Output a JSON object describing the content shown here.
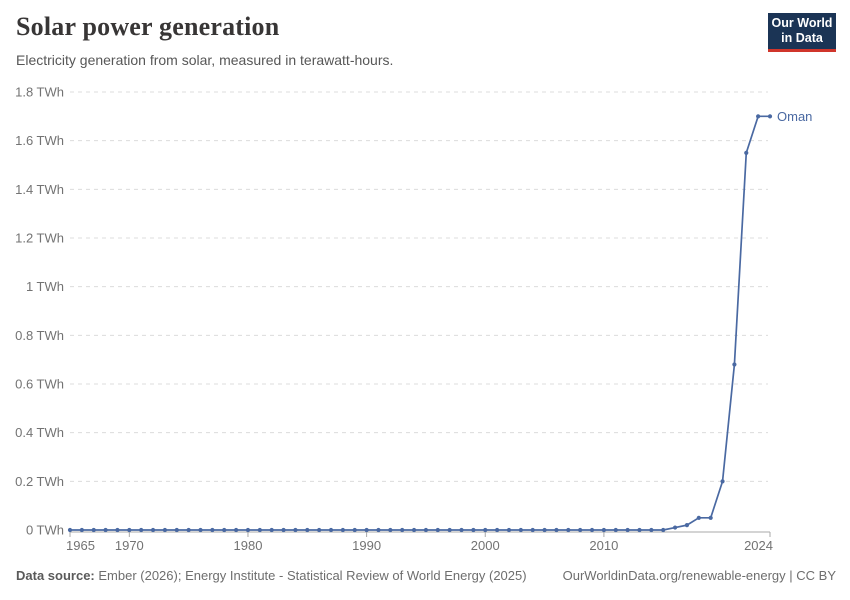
{
  "header": {
    "title": "Solar power generation",
    "subtitle": "Electricity generation from solar, measured in terawatt-hours."
  },
  "logo": {
    "line1": "Our World",
    "line2": "in Data",
    "bg_color": "#1b3455",
    "accent_color": "#d0352b"
  },
  "chart_data": {
    "type": "line",
    "title": "Solar power generation",
    "subtitle": "Electricity generation from solar, measured in terawatt-hours.",
    "unit": "TWh",
    "xlim": [
      1965,
      2024
    ],
    "ylim": [
      0,
      1.8
    ],
    "grid": "horizontal-dashed",
    "legend_position": "line-end-label",
    "x": [
      1965,
      1966,
      1967,
      1968,
      1969,
      1970,
      1971,
      1972,
      1973,
      1974,
      1975,
      1976,
      1977,
      1978,
      1979,
      1980,
      1981,
      1982,
      1983,
      1984,
      1985,
      1986,
      1987,
      1988,
      1989,
      1990,
      1991,
      1992,
      1993,
      1994,
      1995,
      1996,
      1997,
      1998,
      1999,
      2000,
      2001,
      2002,
      2003,
      2004,
      2005,
      2006,
      2007,
      2008,
      2009,
      2010,
      2011,
      2012,
      2013,
      2014,
      2015,
      2016,
      2017,
      2018,
      2019,
      2020,
      2021,
      2022,
      2023,
      2024
    ],
    "series": [
      {
        "name": "Oman",
        "color": "#4a69a2",
        "values": [
          0,
          0,
          0,
          0,
          0,
          0,
          0,
          0,
          0,
          0,
          0,
          0,
          0,
          0,
          0,
          0,
          0,
          0,
          0,
          0,
          0,
          0,
          0,
          0,
          0,
          0,
          0,
          0,
          0,
          0,
          0,
          0,
          0,
          0,
          0,
          0,
          0,
          0,
          0,
          0,
          0,
          0,
          0,
          0,
          0,
          0,
          0,
          0,
          0,
          0,
          0,
          0.01,
          0.02,
          0.05,
          0.05,
          0.2,
          0.68,
          1.55,
          1.7,
          1.7
        ]
      }
    ],
    "y_ticks": [
      {
        "v": 0,
        "label": "0 TWh"
      },
      {
        "v": 0.2,
        "label": "0.2 TWh"
      },
      {
        "v": 0.4,
        "label": "0.4 TWh"
      },
      {
        "v": 0.6,
        "label": "0.6 TWh"
      },
      {
        "v": 0.8,
        "label": "0.8 TWh"
      },
      {
        "v": 1,
        "label": "1 TWh"
      },
      {
        "v": 1.2,
        "label": "1.2 TWh"
      },
      {
        "v": 1.4,
        "label": "1.4 TWh"
      },
      {
        "v": 1.6,
        "label": "1.6 TWh"
      },
      {
        "v": 1.8,
        "label": "1.8 TWh"
      }
    ],
    "x_ticks": [
      {
        "v": 1965,
        "label": "1965",
        "align": "start"
      },
      {
        "v": 1970,
        "label": "1970"
      },
      {
        "v": 1980,
        "label": "1980"
      },
      {
        "v": 1990,
        "label": "1990"
      },
      {
        "v": 2000,
        "label": "2000"
      },
      {
        "v": 2010,
        "label": "2010"
      },
      {
        "v": 2024,
        "label": "2024",
        "align": "end"
      }
    ],
    "colors": {
      "grid": "#dcdcdc",
      "axis": "#a8a8a8",
      "tick_text": "#737373"
    }
  },
  "footer": {
    "data_source_label": "Data source:",
    "data_source": " Ember (2026); Energy Institute - Statistical Review of World Energy (2025)",
    "link": "OurWorldinData.org/renewable-energy | CC BY"
  }
}
